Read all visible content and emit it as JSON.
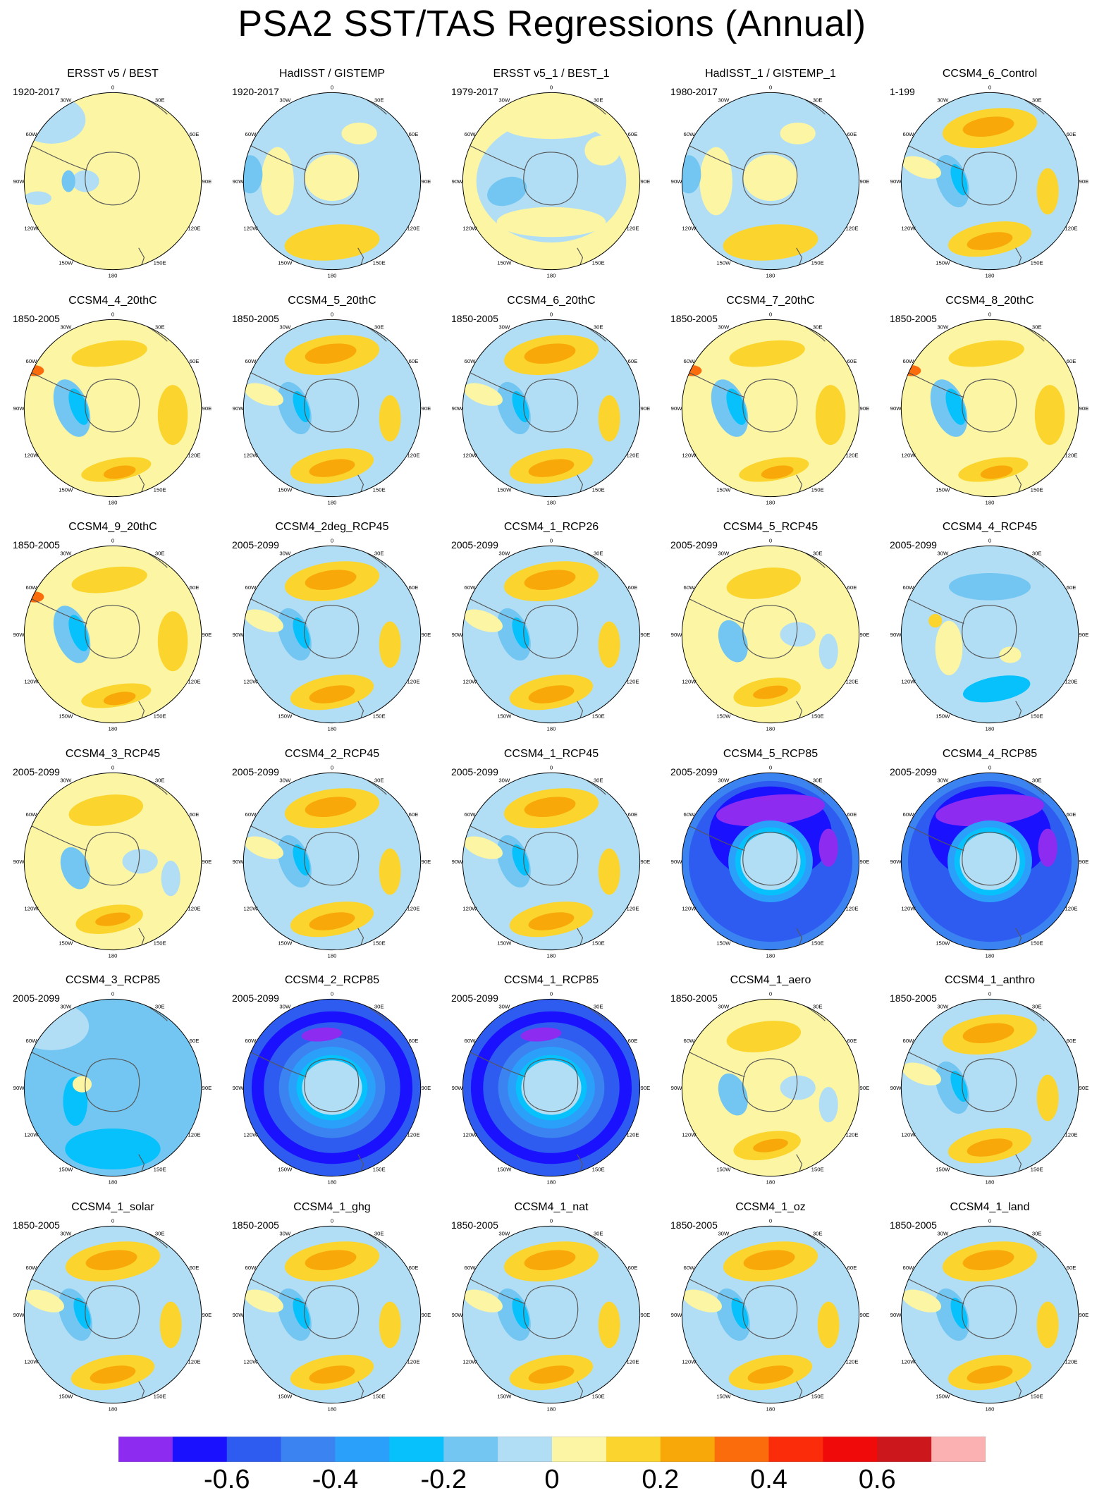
{
  "title": "PSA2 SST/TAS Regressions (Annual)",
  "chart_data": {
    "type": "heatmap",
    "title": "PSA2 SST/TAS Regressions (Annual)",
    "projection": "south polar stereographic",
    "longitude_labels": [
      "0",
      "30E",
      "60E",
      "90E",
      "120E",
      "150E",
      "180",
      "150W",
      "120W",
      "90W",
      "60W",
      "30W"
    ],
    "colorbar": {
      "colors": [
        "#8e2bf0",
        "#1a12ff",
        "#2f5cf0",
        "#3b83f0",
        "#2aa0fb",
        "#06c1fb",
        "#72c6f1",
        "#b1def5",
        "#fbf5a4",
        "#fbd52d",
        "#f9a80a",
        "#fb6c0c",
        "#fb2c0a",
        "#f00a0a",
        "#cc181c",
        "#fbb1b1"
      ],
      "tick_values": [
        "-0.6",
        "-0.4",
        "-0.2",
        "0",
        "0.2",
        "0.4",
        "0.6"
      ]
    },
    "panels": [
      {
        "name": "ERSST v5 / BEST",
        "period": "1920-2017",
        "pattern": "observed_warm"
      },
      {
        "name": "HadISST / GISTEMP",
        "period": "1920-2017",
        "pattern": "observed_cool"
      },
      {
        "name": "ERSST v5_1 / BEST_1",
        "period": "1979-2017",
        "pattern": "observed_mixed"
      },
      {
        "name": "HadISST_1 / GISTEMP_1",
        "period": "1980-2017",
        "pattern": "observed_cool"
      },
      {
        "name": "CCSM4_6_Control",
        "period": "1-199",
        "pattern": "model"
      },
      {
        "name": "CCSM4_4_20thC",
        "period": "1850-2005",
        "pattern": "model_strong"
      },
      {
        "name": "CCSM4_5_20thC",
        "period": "1850-2005",
        "pattern": "model"
      },
      {
        "name": "CCSM4_6_20thC",
        "period": "1850-2005",
        "pattern": "model"
      },
      {
        "name": "CCSM4_7_20thC",
        "period": "1850-2005",
        "pattern": "model_strong"
      },
      {
        "name": "CCSM4_8_20thC",
        "period": "1850-2005",
        "pattern": "model_strong"
      },
      {
        "name": "CCSM4_9_20thC",
        "period": "1850-2005",
        "pattern": "model_strong"
      },
      {
        "name": "CCSM4_2deg_RCP45",
        "period": "2005-2099",
        "pattern": "model"
      },
      {
        "name": "CCSM4_1_RCP26",
        "period": "2005-2099",
        "pattern": "model"
      },
      {
        "name": "CCSM4_5_RCP45",
        "period": "2005-2099",
        "pattern": "model_weak"
      },
      {
        "name": "CCSM4_4_RCP45",
        "period": "2005-2099",
        "pattern": "rcp45_cool"
      },
      {
        "name": "CCSM4_3_RCP45",
        "period": "2005-2099",
        "pattern": "model_weak"
      },
      {
        "name": "CCSM4_2_RCP45",
        "period": "2005-2099",
        "pattern": "model"
      },
      {
        "name": "CCSM4_1_RCP45",
        "period": "2005-2099",
        "pattern": "model"
      },
      {
        "name": "CCSM4_5_RCP85",
        "period": "2005-2099",
        "pattern": "rcp85_strong"
      },
      {
        "name": "CCSM4_4_RCP85",
        "period": "2005-2099",
        "pattern": "rcp85_strong"
      },
      {
        "name": "CCSM4_3_RCP85",
        "period": "2005-2099",
        "pattern": "rcp85_mild"
      },
      {
        "name": "CCSM4_2_RCP85",
        "period": "2005-2099",
        "pattern": "rcp85"
      },
      {
        "name": "CCSM4_1_RCP85",
        "period": "2005-2099",
        "pattern": "rcp85"
      },
      {
        "name": "CCSM4_1_aero",
        "period": "1850-2005",
        "pattern": "model_weak"
      },
      {
        "name": "CCSM4_1_anthro",
        "period": "1850-2005",
        "pattern": "model"
      },
      {
        "name": "CCSM4_1_solar",
        "period": "1850-2005",
        "pattern": "model"
      },
      {
        "name": "CCSM4_1_ghg",
        "period": "1850-2005",
        "pattern": "model"
      },
      {
        "name": "CCSM4_1_nat",
        "period": "1850-2005",
        "pattern": "model"
      },
      {
        "name": "CCSM4_1_oz",
        "period": "1850-2005",
        "pattern": "model"
      },
      {
        "name": "CCSM4_1_land",
        "period": "1850-2005",
        "pattern": "model"
      }
    ]
  }
}
